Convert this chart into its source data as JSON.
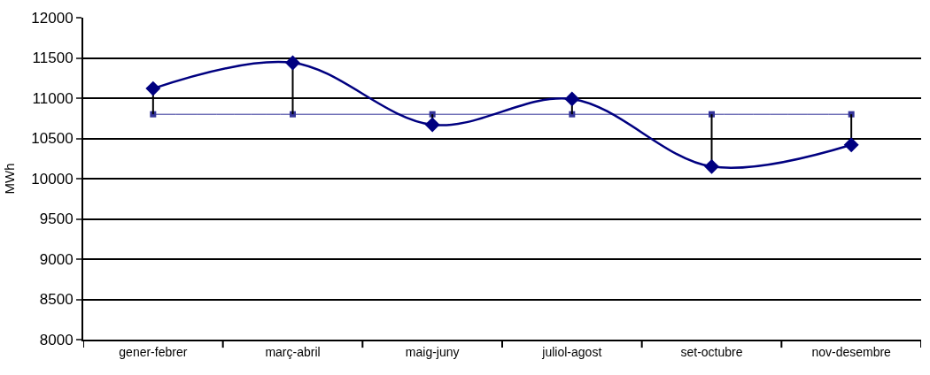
{
  "chart_data": {
    "type": "line",
    "ylabel": "MWh",
    "categories": [
      "gener-febrer",
      "març-abril",
      "maig-juny",
      "juliol-agost",
      "set-octubre",
      "nov-desembre"
    ],
    "series": [
      {
        "color": "#000080",
        "values": [
          11120,
          11440,
          10670,
          10990,
          10150,
          10420
        ],
        "marker": "diamond",
        "errors": [
          [
            10800,
            11120
          ],
          [
            10800,
            11440
          ],
          [
            10670,
            10800
          ],
          [
            10800,
            10990
          ],
          [
            10150,
            10800
          ],
          [
            10420,
            10800
          ]
        ]
      },
      {
        "color": "#333399",
        "values": [
          10800,
          10800,
          10800,
          10800,
          10800,
          10800
        ],
        "marker": "square"
      }
    ],
    "ylim": [
      8000,
      12000
    ],
    "yticks": [
      8000,
      8500,
      9000,
      9500,
      10000,
      10500,
      11000,
      11500,
      12000
    ],
    "grid": "y"
  }
}
